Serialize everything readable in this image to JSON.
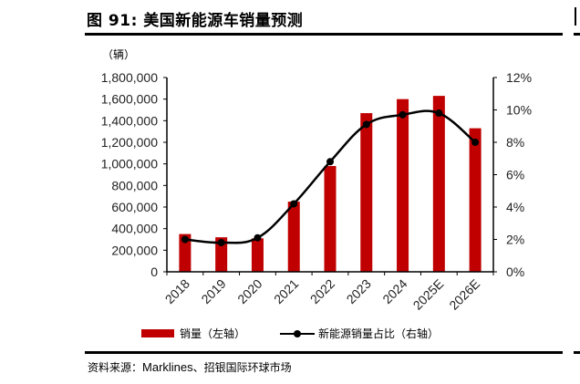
{
  "figure": {
    "title": "图 91: 美国新能源车销量预测",
    "unit_label": "（辆）",
    "source_prefix": "资料来源：",
    "source_en": "Marklines",
    "source_suffix": "、招银国际环球市场"
  },
  "legend": {
    "bar_label": "销量（左轴）",
    "line_label": "新能源销量占比（右轴）"
  },
  "colors": {
    "bar": "#C00000",
    "line": "#000000"
  },
  "chart_data": {
    "type": "bar+line",
    "title": "美国新能源车销量预测",
    "categories": [
      "2018",
      "2019",
      "2020",
      "2021",
      "2022",
      "2023",
      "2024",
      "2025E",
      "2026E"
    ],
    "series": [
      {
        "name": "销量（左轴）",
        "type": "bar",
        "axis": "left",
        "values": [
          350000,
          320000,
          310000,
          650000,
          980000,
          1470000,
          1600000,
          1630000,
          1330000
        ]
      },
      {
        "name": "新能源销量占比（右轴）",
        "type": "line",
        "axis": "right",
        "unit": "%",
        "values": [
          2.0,
          1.8,
          2.1,
          4.2,
          6.8,
          9.1,
          9.7,
          9.8,
          8.0
        ]
      }
    ],
    "ylabel_left": "（辆）",
    "ylim_left": [
      0,
      1800000
    ],
    "yticks_left": [
      "0",
      "200,000",
      "400,000",
      "600,000",
      "800,000",
      "1,000,000",
      "1,200,000",
      "1,400,000",
      "1,600,000",
      "1,800,000"
    ],
    "ylim_right": [
      0,
      12
    ],
    "yticks_right": [
      "0%",
      "2%",
      "4%",
      "6%",
      "8%",
      "10%",
      "12%"
    ],
    "grid": false,
    "legend_position": "bottom"
  }
}
